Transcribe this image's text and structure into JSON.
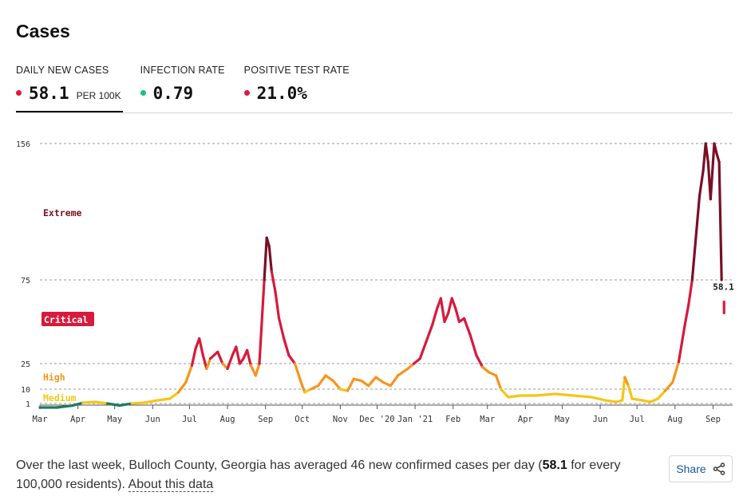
{
  "title": "Cases",
  "tabs": [
    {
      "label": "DAILY NEW CASES",
      "value": "58.1",
      "unit": "PER 100K",
      "dot_color": "#e0173b",
      "active": true
    },
    {
      "label": "INFECTION RATE",
      "value": "0.79",
      "unit": "",
      "dot_color": "#12c47a",
      "active": false
    },
    {
      "label": "POSITIVE TEST RATE",
      "value": "21.0%",
      "unit": "",
      "dot_color": "#d71a43",
      "active": false
    }
  ],
  "footer": {
    "text_before": "Over the last week, Bulloch County, Georgia has averaged 46 new confirmed cases per day (",
    "value": "58.1",
    "text_after": " for every 100,000 residents). ",
    "link": "About this data"
  },
  "share": {
    "label": "Share",
    "icon": "share-icon"
  },
  "chart_data": {
    "type": "line",
    "ylabel": "",
    "xlabel": "",
    "y_ticks": [
      1,
      10,
      25,
      75,
      156
    ],
    "x_ticks": [
      "Mar",
      "Apr",
      "May",
      "Jun",
      "Jul",
      "Aug",
      "Sep",
      "Oct",
      "Nov",
      "Dec '20",
      "Jan '21",
      "Feb",
      "Mar",
      "Apr",
      "May",
      "Jun",
      "Jul",
      "Aug",
      "Sep"
    ],
    "grid": true,
    "zones": [
      {
        "label": "Medium",
        "from": 1,
        "to": 10,
        "color": "#f5c518"
      },
      {
        "label": "High",
        "from": 10,
        "to": 25,
        "color": "#f7941d"
      },
      {
        "label": "Critical",
        "from": 25,
        "to": 75,
        "color": "#d71a3b"
      },
      {
        "label": "Extreme",
        "from": 75,
        "to": 156,
        "color": "#7a0f26"
      }
    ],
    "end_label": "58.1",
    "points": [
      {
        "x": "2020-03-01",
        "y": 0
      },
      {
        "x": "2020-03-15",
        "y": 0
      },
      {
        "x": "2020-03-28",
        "y": 0.5
      },
      {
        "x": "2020-04-05",
        "y": 1.5
      },
      {
        "x": "2020-04-15",
        "y": 2
      },
      {
        "x": "2020-04-25",
        "y": 1
      },
      {
        "x": "2020-05-05",
        "y": 0.5
      },
      {
        "x": "2020-05-15",
        "y": 1
      },
      {
        "x": "2020-05-25",
        "y": 1.5
      },
      {
        "x": "2020-06-05",
        "y": 3
      },
      {
        "x": "2020-06-15",
        "y": 4
      },
      {
        "x": "2020-06-22",
        "y": 8
      },
      {
        "x": "2020-06-28",
        "y": 14
      },
      {
        "x": "2020-07-03",
        "y": 24
      },
      {
        "x": "2020-07-06",
        "y": 34
      },
      {
        "x": "2020-07-09",
        "y": 40
      },
      {
        "x": "2020-07-12",
        "y": 30
      },
      {
        "x": "2020-07-15",
        "y": 22
      },
      {
        "x": "2020-07-18",
        "y": 28
      },
      {
        "x": "2020-07-21",
        "y": 30
      },
      {
        "x": "2020-07-24",
        "y": 32
      },
      {
        "x": "2020-07-28",
        "y": 25
      },
      {
        "x": "2020-08-01",
        "y": 22
      },
      {
        "x": "2020-08-05",
        "y": 30
      },
      {
        "x": "2020-08-08",
        "y": 35
      },
      {
        "x": "2020-08-11",
        "y": 25
      },
      {
        "x": "2020-08-14",
        "y": 28
      },
      {
        "x": "2020-08-17",
        "y": 33
      },
      {
        "x": "2020-08-20",
        "y": 24
      },
      {
        "x": "2020-08-24",
        "y": 18
      },
      {
        "x": "2020-08-27",
        "y": 25
      },
      {
        "x": "2020-08-31",
        "y": 75
      },
      {
        "x": "2020-09-02",
        "y": 100
      },
      {
        "x": "2020-09-04",
        "y": 95
      },
      {
        "x": "2020-09-06",
        "y": 80
      },
      {
        "x": "2020-09-09",
        "y": 68
      },
      {
        "x": "2020-09-12",
        "y": 52
      },
      {
        "x": "2020-09-16",
        "y": 40
      },
      {
        "x": "2020-09-20",
        "y": 30
      },
      {
        "x": "2020-09-25",
        "y": 25
      },
      {
        "x": "2020-09-30",
        "y": 14
      },
      {
        "x": "2020-10-03",
        "y": 8
      },
      {
        "x": "2020-10-08",
        "y": 10
      },
      {
        "x": "2020-10-14",
        "y": 12
      },
      {
        "x": "2020-10-20",
        "y": 18
      },
      {
        "x": "2020-10-26",
        "y": 15
      },
      {
        "x": "2020-11-01",
        "y": 10
      },
      {
        "x": "2020-11-07",
        "y": 9
      },
      {
        "x": "2020-11-12",
        "y": 16
      },
      {
        "x": "2020-11-18",
        "y": 15
      },
      {
        "x": "2020-11-24",
        "y": 12
      },
      {
        "x": "2020-11-30",
        "y": 17
      },
      {
        "x": "2020-12-06",
        "y": 14
      },
      {
        "x": "2020-12-12",
        "y": 12
      },
      {
        "x": "2020-12-18",
        "y": 18
      },
      {
        "x": "2020-12-26",
        "y": 22
      },
      {
        "x": "2020-12-31",
        "y": 25
      },
      {
        "x": "2021-01-05",
        "y": 28
      },
      {
        "x": "2021-01-10",
        "y": 38
      },
      {
        "x": "2021-01-15",
        "y": 48
      },
      {
        "x": "2021-01-19",
        "y": 58
      },
      {
        "x": "2021-01-22",
        "y": 64
      },
      {
        "x": "2021-01-25",
        "y": 50
      },
      {
        "x": "2021-01-28",
        "y": 55
      },
      {
        "x": "2021-01-31",
        "y": 64
      },
      {
        "x": "2021-02-03",
        "y": 58
      },
      {
        "x": "2021-02-06",
        "y": 50
      },
      {
        "x": "2021-02-10",
        "y": 52
      },
      {
        "x": "2021-02-15",
        "y": 42
      },
      {
        "x": "2021-02-20",
        "y": 30
      },
      {
        "x": "2021-02-25",
        "y": 23
      },
      {
        "x": "2021-03-02",
        "y": 20
      },
      {
        "x": "2021-03-08",
        "y": 18
      },
      {
        "x": "2021-03-12",
        "y": 10
      },
      {
        "x": "2021-03-18",
        "y": 5
      },
      {
        "x": "2021-03-28",
        "y": 6
      },
      {
        "x": "2021-04-10",
        "y": 6
      },
      {
        "x": "2021-04-25",
        "y": 7
      },
      {
        "x": "2021-05-10",
        "y": 6
      },
      {
        "x": "2021-05-25",
        "y": 5
      },
      {
        "x": "2021-06-05",
        "y": 3
      },
      {
        "x": "2021-06-14",
        "y": 2
      },
      {
        "x": "2021-06-19",
        "y": 3
      },
      {
        "x": "2021-06-21",
        "y": 17
      },
      {
        "x": "2021-06-24",
        "y": 12
      },
      {
        "x": "2021-06-27",
        "y": 4
      },
      {
        "x": "2021-07-05",
        "y": 3
      },
      {
        "x": "2021-07-12",
        "y": 2
      },
      {
        "x": "2021-07-18",
        "y": 4
      },
      {
        "x": "2021-07-24",
        "y": 9
      },
      {
        "x": "2021-07-30",
        "y": 14
      },
      {
        "x": "2021-08-04",
        "y": 26
      },
      {
        "x": "2021-08-09",
        "y": 48
      },
      {
        "x": "2021-08-12",
        "y": 60
      },
      {
        "x": "2021-08-15",
        "y": 75
      },
      {
        "x": "2021-08-18",
        "y": 100
      },
      {
        "x": "2021-08-21",
        "y": 125
      },
      {
        "x": "2021-08-24",
        "y": 140
      },
      {
        "x": "2021-08-26",
        "y": 156
      },
      {
        "x": "2021-08-28",
        "y": 145
      },
      {
        "x": "2021-08-30",
        "y": 123
      },
      {
        "x": "2021-09-01",
        "y": 145
      },
      {
        "x": "2021-09-02",
        "y": 156
      },
      {
        "x": "2021-09-04",
        "y": 150
      },
      {
        "x": "2021-09-06",
        "y": 145
      },
      {
        "x": "2021-09-08",
        "y": 75
      },
      {
        "x": "2021-09-10",
        "y": 58.1
      }
    ]
  }
}
